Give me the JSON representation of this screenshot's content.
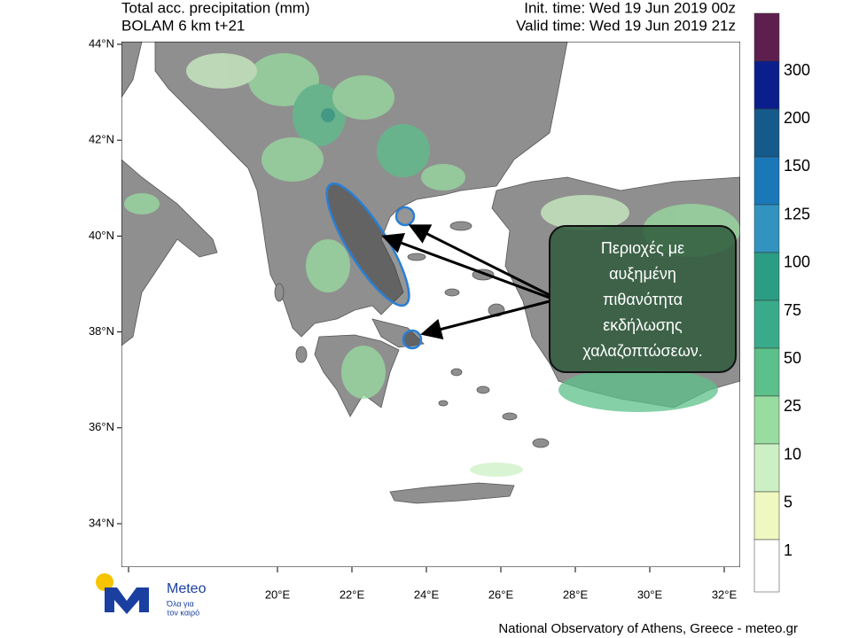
{
  "header": {
    "title": "Total acc. precipitation (mm)",
    "model": "BOLAM 6 km t+21",
    "init_time": "Init. time: Wed 19 Jun 2019 00z",
    "valid_time": "Valid time: Wed 19 Jun 2019 21z"
  },
  "map": {
    "lat_labels": [
      "44°N",
      "42°N",
      "40°N",
      "38°N",
      "36°N",
      "34°N"
    ],
    "lon_labels": [
      "20°E",
      "22°E",
      "24°E",
      "26°E",
      "28°E",
      "30°E",
      "32°E"
    ]
  },
  "annotation": {
    "lines": [
      "Περιοχές με",
      "αυξημένη",
      "πιθανότητα",
      "εκδήλωσης",
      "χαλαζοπτώσεων."
    ]
  },
  "colorbar": {
    "labels": [
      300,
      200,
      150,
      125,
      100,
      75,
      50,
      25,
      10,
      5,
      1
    ]
  },
  "logo": {
    "name": "Meteo",
    "tagline_lines": [
      "Όλα για",
      "τον καιρό"
    ]
  },
  "footer": "National Observatory of Athens, Greece - meteo.gr"
}
